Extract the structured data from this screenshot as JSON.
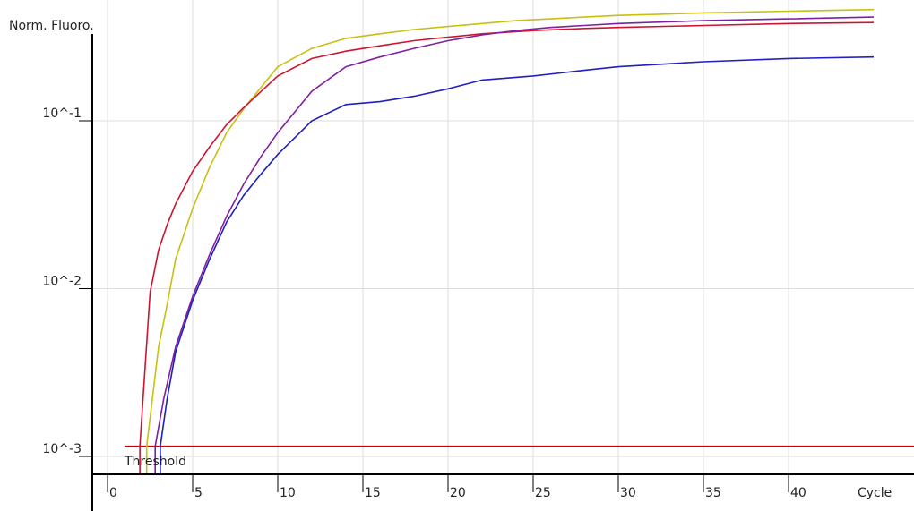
{
  "chart_data": {
    "type": "line",
    "ylabel": "Norm. Fluoro.",
    "xlabel": "Cycle",
    "y_scale": "log",
    "ylim": [
      0.0008,
      0.55
    ],
    "xlim": [
      -0.5,
      48
    ],
    "x_ticks": [
      0,
      5,
      10,
      15,
      20,
      25,
      30,
      35,
      40
    ],
    "x_tick_labels": [
      "0",
      "5",
      "10",
      "15",
      "20",
      "25",
      "30",
      "35",
      "40"
    ],
    "y_ticks": [
      0.1,
      0.01,
      0.001
    ],
    "y_tick_labels": [
      "10^-1",
      "10^-2",
      "10^-3"
    ],
    "grid": true,
    "threshold": {
      "label": "Threshold",
      "value": 0.00115,
      "color": "#cc0000",
      "x_range": [
        1,
        48
      ]
    },
    "series": [
      {
        "color": "#c8c010",
        "x": [
          2.3,
          3,
          3.5,
          4,
          5,
          6,
          7,
          8,
          10,
          12,
          14,
          16,
          18,
          20,
          22,
          24,
          26,
          28,
          30,
          32,
          35,
          40,
          45
        ],
        "y": [
          0.00115,
          0.0045,
          0.008,
          0.015,
          0.03,
          0.053,
          0.085,
          0.118,
          0.21,
          0.27,
          0.31,
          0.33,
          0.35,
          0.365,
          0.38,
          0.395,
          0.405,
          0.415,
          0.425,
          0.43,
          0.44,
          0.45,
          0.46
        ]
      },
      {
        "color": "#cc1530",
        "x": [
          1.9,
          2.5,
          3,
          3.5,
          4,
          5,
          6,
          7,
          8,
          10,
          12,
          14,
          16,
          18,
          20,
          22,
          25,
          28,
          30,
          35,
          40,
          45
        ],
        "y": [
          0.00115,
          0.0095,
          0.017,
          0.024,
          0.032,
          0.05,
          0.07,
          0.095,
          0.12,
          0.185,
          0.235,
          0.26,
          0.28,
          0.3,
          0.315,
          0.33,
          0.345,
          0.355,
          0.36,
          0.37,
          0.38,
          0.385
        ]
      },
      {
        "color": "#8020a0",
        "x": [
          2.8,
          3.3,
          4,
          5,
          6,
          7,
          8,
          9,
          10,
          12,
          14,
          16,
          18,
          20,
          22,
          24,
          26,
          28,
          30,
          35,
          40,
          45
        ],
        "y": [
          0.00115,
          0.0022,
          0.0045,
          0.009,
          0.016,
          0.027,
          0.042,
          0.061,
          0.085,
          0.15,
          0.21,
          0.24,
          0.27,
          0.3,
          0.325,
          0.345,
          0.36,
          0.37,
          0.38,
          0.395,
          0.405,
          0.415
        ]
      },
      {
        "color": "#2020c0",
        "x": [
          3.1,
          3.5,
          4,
          5,
          6,
          7,
          8,
          9,
          10,
          12,
          14,
          16,
          18,
          20,
          22,
          25,
          28,
          30,
          35,
          40,
          45
        ],
        "y": [
          0.00115,
          0.0022,
          0.0042,
          0.0085,
          0.015,
          0.025,
          0.036,
          0.048,
          0.063,
          0.1,
          0.125,
          0.13,
          0.14,
          0.155,
          0.175,
          0.185,
          0.2,
          0.21,
          0.225,
          0.235,
          0.24
        ]
      }
    ]
  }
}
